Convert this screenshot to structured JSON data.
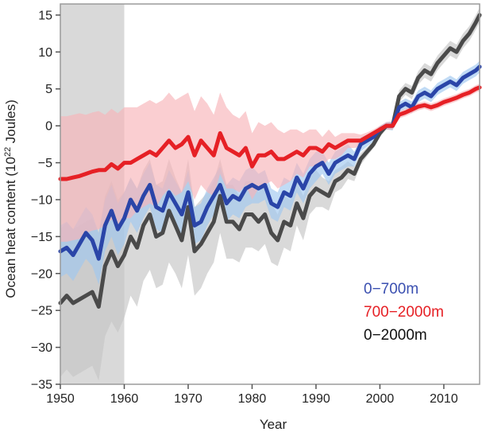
{
  "chart_data": {
    "type": "line",
    "title": "",
    "xlabel": "Year",
    "ylabel": "Ocean heat content (10",
    "ylabel_exp": "22",
    "ylabel_unit": " Joules)",
    "xlim": [
      1950,
      2015.6
    ],
    "ylim": [
      -35,
      16.5
    ],
    "xticks": [
      1950,
      1960,
      1970,
      1980,
      1990,
      2000,
      2010
    ],
    "yticks": [
      -35,
      -30,
      -25,
      -20,
      -15,
      -10,
      -5,
      0,
      5,
      10,
      15
    ],
    "xtick_labels": [
      "1950",
      "1960",
      "1970",
      "1980",
      "1990",
      "2000",
      "2010"
    ],
    "ytick_labels": [
      "−35",
      "−30",
      "−25",
      "−20",
      "−15",
      "−10",
      "−5",
      "0",
      "5",
      "10",
      "15"
    ],
    "shaded_period": [
      1950,
      1960
    ],
    "legend_position": "bottom-right",
    "grid": false,
    "series": [
      {
        "name": "0−700m",
        "color": "#2a45a8",
        "band_color": "#9fc8f0",
        "x": [
          1950,
          1951,
          1952,
          1953,
          1954,
          1955,
          1956,
          1957,
          1958,
          1959,
          1960,
          1961,
          1962,
          1963,
          1964,
          1965,
          1966,
          1967,
          1968,
          1969,
          1970,
          1971,
          1972,
          1973,
          1974,
          1975,
          1976,
          1977,
          1978,
          1979,
          1980,
          1981,
          1982,
          1983,
          1984,
          1985,
          1986,
          1987,
          1988,
          1989,
          1990,
          1991,
          1992,
          1993,
          1994,
          1995,
          1996,
          1997,
          1998,
          1999,
          2000,
          2001,
          2002,
          2003,
          2004,
          2005,
          2006,
          2007,
          2008,
          2009,
          2010,
          2011,
          2012,
          2013,
          2014,
          2015,
          2015.6
        ],
        "y": [
          -17.0,
          -16.5,
          -17.5,
          -16.0,
          -14.5,
          -15.5,
          -18.0,
          -13.5,
          -11.5,
          -14.0,
          -12.5,
          -10.0,
          -11.5,
          -9.5,
          -8.0,
          -11.0,
          -11.5,
          -9.0,
          -10.5,
          -12.0,
          -9.0,
          -13.5,
          -13.0,
          -11.0,
          -9.5,
          -8.0,
          -10.5,
          -9.5,
          -10.0,
          -8.5,
          -8.0,
          -8.5,
          -8.0,
          -10.5,
          -11.0,
          -9.0,
          -9.5,
          -7.0,
          -8.5,
          -6.5,
          -5.5,
          -5.0,
          -6.5,
          -5.0,
          -4.5,
          -4.0,
          -4.5,
          -2.5,
          -2.0,
          -1.5,
          -0.5,
          0.0,
          0.0,
          2.5,
          3.0,
          2.5,
          4.0,
          4.5,
          4.0,
          5.0,
          5.5,
          6.0,
          5.5,
          6.5,
          7.0,
          7.5,
          8.0
        ],
        "band_halfwidth": [
          3.5,
          3.5,
          3.5,
          3.5,
          3.5,
          3.5,
          3.5,
          3.5,
          3.5,
          3.5,
          3.5,
          3.0,
          3.0,
          3.0,
          3.0,
          3.0,
          3.0,
          3.0,
          3.0,
          3.0,
          3.0,
          2.5,
          2.5,
          2.5,
          2.5,
          2.5,
          2.5,
          2.5,
          2.5,
          2.5,
          2.5,
          2.0,
          2.0,
          2.0,
          2.0,
          2.0,
          2.0,
          2.0,
          2.0,
          2.0,
          2.0,
          1.5,
          1.5,
          1.5,
          1.5,
          1.5,
          1.0,
          1.0,
          0.8,
          0.6,
          0.5,
          0.5,
          0.6,
          0.7,
          0.7,
          0.8,
          0.8,
          0.8,
          0.8,
          0.8,
          0.8,
          0.8,
          0.8,
          0.8,
          0.8,
          0.8,
          0.8
        ]
      },
      {
        "name": "700−2000m",
        "color": "#e62025",
        "band_color": "#f7b4b8",
        "x": [
          1950,
          1951,
          1952,
          1953,
          1954,
          1955,
          1956,
          1957,
          1958,
          1959,
          1960,
          1961,
          1962,
          1963,
          1964,
          1965,
          1966,
          1967,
          1968,
          1969,
          1970,
          1971,
          1972,
          1973,
          1974,
          1975,
          1976,
          1977,
          1978,
          1979,
          1980,
          1981,
          1982,
          1983,
          1984,
          1985,
          1986,
          1987,
          1988,
          1989,
          1990,
          1991,
          1992,
          1993,
          1994,
          1995,
          1996,
          1997,
          1998,
          1999,
          2000,
          2001,
          2002,
          2003,
          2004,
          2005,
          2006,
          2007,
          2008,
          2009,
          2010,
          2011,
          2012,
          2013,
          2014,
          2015,
          2015.6
        ],
        "y": [
          -7.2,
          -7.2,
          -7.0,
          -6.8,
          -6.5,
          -6.2,
          -6.0,
          -6.0,
          -5.2,
          -5.8,
          -5.0,
          -5.0,
          -4.5,
          -4.0,
          -3.5,
          -4.0,
          -3.0,
          -2.0,
          -3.0,
          -2.5,
          -1.5,
          -4.0,
          -2.0,
          -3.0,
          -4.0,
          -1.0,
          -3.0,
          -3.5,
          -4.0,
          -3.0,
          -5.5,
          -4.0,
          -4.0,
          -3.5,
          -4.5,
          -4.5,
          -4.0,
          -3.5,
          -4.0,
          -3.0,
          -3.0,
          -3.5,
          -2.5,
          -3.0,
          -2.5,
          -2.0,
          -2.0,
          -2.0,
          -1.5,
          -1.0,
          -0.5,
          0.0,
          0.0,
          1.5,
          1.8,
          2.2,
          2.6,
          2.8,
          2.5,
          2.8,
          3.2,
          3.5,
          3.8,
          4.2,
          4.5,
          5.0,
          5.2
        ],
        "band_halfwidth": [
          8.5,
          8.5,
          8.5,
          8.5,
          8.0,
          8.0,
          8.0,
          7.5,
          7.5,
          7.5,
          7.5,
          7.5,
          7.0,
          7.0,
          7.0,
          7.0,
          6.5,
          6.5,
          6.5,
          6.5,
          6.0,
          6.0,
          6.0,
          6.0,
          5.5,
          5.5,
          5.5,
          5.0,
          5.0,
          5.0,
          4.5,
          4.5,
          4.0,
          4.0,
          4.0,
          3.5,
          3.5,
          3.0,
          3.0,
          2.5,
          2.5,
          2.0,
          2.0,
          1.5,
          1.5,
          1.0,
          1.0,
          0.8,
          0.6,
          0.5,
          0.5,
          0.5,
          0.5,
          0.5,
          0.5,
          0.5,
          0.5,
          0.5,
          0.5,
          0.5,
          0.5,
          0.5,
          0.5,
          0.5,
          0.5,
          0.5,
          0.5
        ]
      },
      {
        "name": "0−2000m",
        "color": "#4a4a4a",
        "band_color": "#c4c4c4",
        "x": [
          1950,
          1951,
          1952,
          1953,
          1954,
          1955,
          1956,
          1957,
          1958,
          1959,
          1960,
          1961,
          1962,
          1963,
          1964,
          1965,
          1966,
          1967,
          1968,
          1969,
          1970,
          1971,
          1972,
          1973,
          1974,
          1975,
          1976,
          1977,
          1978,
          1979,
          1980,
          1981,
          1982,
          1983,
          1984,
          1985,
          1986,
          1987,
          1988,
          1989,
          1990,
          1991,
          1992,
          1993,
          1994,
          1995,
          1996,
          1997,
          1998,
          1999,
          2000,
          2001,
          2002,
          2003,
          2004,
          2005,
          2006,
          2007,
          2008,
          2009,
          2010,
          2011,
          2012,
          2013,
          2014,
          2015,
          2015.6
        ],
        "y": [
          -24.0,
          -23.0,
          -24.0,
          -23.5,
          -23.0,
          -22.5,
          -24.5,
          -19.0,
          -17.0,
          -19.0,
          -17.5,
          -15.0,
          -16.5,
          -13.5,
          -12.0,
          -15.0,
          -14.5,
          -11.5,
          -13.5,
          -15.5,
          -11.0,
          -17.0,
          -16.0,
          -14.5,
          -13.0,
          -9.5,
          -13.0,
          -13.0,
          -14.0,
          -12.0,
          -12.0,
          -13.0,
          -12.0,
          -14.5,
          -15.5,
          -13.0,
          -13.5,
          -10.5,
          -12.5,
          -9.5,
          -8.5,
          -9.0,
          -9.5,
          -7.5,
          -7.0,
          -6.0,
          -6.5,
          -4.5,
          -3.5,
          -2.5,
          -1.0,
          0.0,
          0.0,
          4.0,
          5.0,
          4.5,
          6.5,
          7.5,
          7.0,
          8.5,
          9.5,
          10.5,
          10.0,
          11.5,
          12.5,
          14.0,
          15.0
        ],
        "band_halfwidth": [
          10.0,
          10.0,
          10.0,
          10.0,
          10.0,
          10.0,
          10.0,
          9.5,
          9.5,
          9.0,
          8.5,
          8.0,
          8.0,
          7.5,
          7.5,
          7.0,
          7.0,
          7.0,
          6.5,
          6.5,
          6.5,
          6.0,
          6.0,
          5.5,
          5.5,
          5.0,
          5.0,
          5.0,
          4.5,
          4.5,
          4.5,
          4.0,
          4.0,
          4.0,
          3.5,
          3.5,
          3.5,
          3.0,
          3.0,
          2.5,
          2.5,
          2.0,
          2.0,
          1.5,
          1.5,
          1.2,
          1.0,
          0.8,
          0.6,
          0.5,
          0.5,
          0.5,
          0.6,
          0.8,
          0.8,
          0.9,
          0.9,
          1.0,
          1.0,
          1.0,
          1.0,
          1.0,
          1.0,
          1.0,
          1.0,
          1.0,
          1.0
        ]
      }
    ],
    "draw_order": [
      2,
      0,
      1
    ]
  }
}
